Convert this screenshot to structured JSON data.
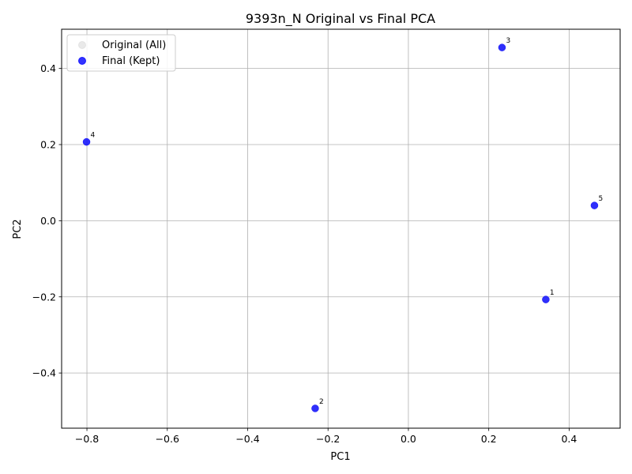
{
  "chart_data": {
    "type": "scatter",
    "title": "9393n_N Original vs Final PCA",
    "xlabel": "PC1",
    "ylabel": "PC2",
    "xlim": [
      -0.863,
      0.527
    ],
    "ylim": [
      -0.545,
      0.503
    ],
    "xticks": [
      -0.8,
      -0.6,
      -0.4,
      -0.2,
      0.0,
      0.2,
      0.4
    ],
    "xtick_labels": [
      "−0.8",
      "−0.6",
      "−0.4",
      "−0.2",
      "0.0",
      "0.2",
      "0.4"
    ],
    "yticks": [
      -0.4,
      -0.2,
      0.0,
      0.2,
      0.4
    ],
    "ytick_labels": [
      "−0.4",
      "−0.2",
      "0.0",
      "0.2",
      "0.4"
    ],
    "grid": true,
    "legend_position": "upper-left",
    "series": [
      {
        "name": "Original (All)",
        "color": "#d3d3d3",
        "points": [
          {
            "label": "1",
            "x": 0.342,
            "y": -0.207
          },
          {
            "label": "2",
            "x": -0.232,
            "y": -0.493
          },
          {
            "label": "3",
            "x": 0.233,
            "y": 0.455
          },
          {
            "label": "4",
            "x": -0.801,
            "y": 0.207
          },
          {
            "label": "5",
            "x": 0.463,
            "y": 0.04
          }
        ]
      },
      {
        "name": "Final (Kept)",
        "color": "#0000ff",
        "points": [
          {
            "label": "1",
            "x": 0.342,
            "y": -0.207
          },
          {
            "label": "2",
            "x": -0.232,
            "y": -0.493
          },
          {
            "label": "3",
            "x": 0.233,
            "y": 0.455
          },
          {
            "label": "4",
            "x": -0.801,
            "y": 0.207
          },
          {
            "label": "5",
            "x": 0.463,
            "y": 0.04
          }
        ]
      }
    ]
  }
}
